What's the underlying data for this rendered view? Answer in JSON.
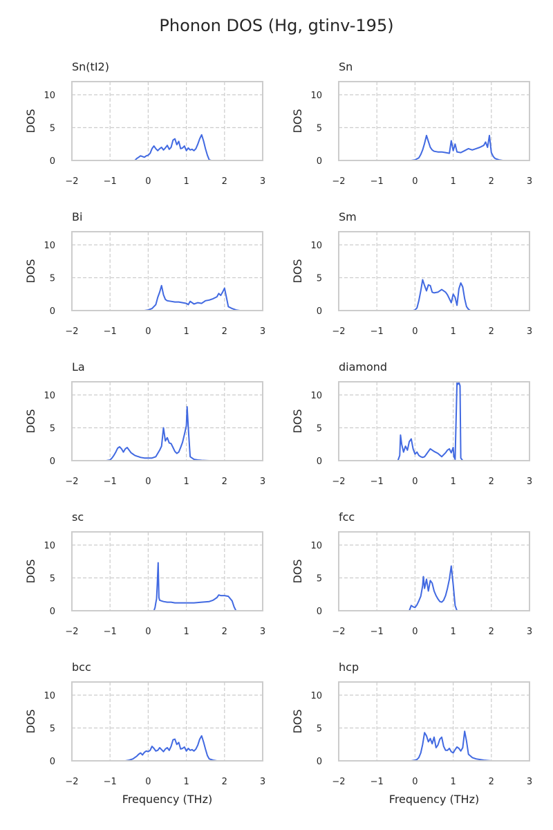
{
  "figure": {
    "title": "Phonon DOS (Hg, gtinv-195)",
    "line_color": "#4169e1",
    "grid_color": "#cccccc",
    "frame_color": "#cccccc"
  },
  "chart_data": [
    {
      "type": "line",
      "title": "Sn(tI2)",
      "xlabel": "",
      "ylabel": "DOS",
      "xlim": [
        -2,
        3
      ],
      "ylim": [
        0,
        12
      ],
      "xticks": [
        -2,
        -1,
        0,
        1,
        2,
        3
      ],
      "yticks": [
        0,
        5,
        10
      ],
      "grid": true,
      "series": [
        {
          "x": [
            -0.35,
            -0.3,
            -0.25,
            -0.2,
            -0.15,
            -0.1,
            -0.05,
            0,
            0.05,
            0.1,
            0.15,
            0.2,
            0.25,
            0.3,
            0.35,
            0.4,
            0.45,
            0.5,
            0.55,
            0.6,
            0.65,
            0.7,
            0.75,
            0.8,
            0.85,
            0.9,
            0.95,
            1.0,
            1.05,
            1.1,
            1.15,
            1.2,
            1.25,
            1.3,
            1.35,
            1.4,
            1.45,
            1.5,
            1.55,
            1.6,
            1.65
          ],
          "y": [
            0,
            0.3,
            0.5,
            0.7,
            0.6,
            0.5,
            0.7,
            0.8,
            1.1,
            1.8,
            2.2,
            1.8,
            1.5,
            1.8,
            2.0,
            1.6,
            1.9,
            2.3,
            1.7,
            2.0,
            3.1,
            3.3,
            2.4,
            2.9,
            1.8,
            1.9,
            2.2,
            1.5,
            1.9,
            1.6,
            1.7,
            1.5,
            1.8,
            2.5,
            3.3,
            3.9,
            3.0,
            1.8,
            0.8,
            0.1,
            0
          ]
        }
      ]
    },
    {
      "type": "line",
      "title": "Sn",
      "xlabel": "",
      "ylabel": "DOS",
      "xlim": [
        -2,
        3
      ],
      "ylim": [
        0,
        12
      ],
      "xticks": [
        -2,
        -1,
        0,
        1,
        2,
        3
      ],
      "yticks": [
        0,
        5,
        10
      ],
      "grid": true,
      "series": [
        {
          "x": [
            -0.1,
            0,
            0.1,
            0.15,
            0.2,
            0.25,
            0.3,
            0.35,
            0.4,
            0.45,
            0.5,
            0.6,
            0.7,
            0.8,
            0.9,
            0.95,
            1.0,
            1.05,
            1.1,
            1.2,
            1.3,
            1.4,
            1.5,
            1.6,
            1.7,
            1.8,
            1.85,
            1.9,
            1.95,
            2.0,
            2.05,
            2.1,
            2.2,
            2.3
          ],
          "y": [
            0,
            0.1,
            0.4,
            0.9,
            1.6,
            2.6,
            3.8,
            2.9,
            2.0,
            1.6,
            1.4,
            1.3,
            1.3,
            1.2,
            1.1,
            3.0,
            1.5,
            2.5,
            1.3,
            1.2,
            1.5,
            1.8,
            1.6,
            1.8,
            2.0,
            2.3,
            2.8,
            2.0,
            3.8,
            1.2,
            0.6,
            0.3,
            0.1,
            0
          ]
        }
      ]
    },
    {
      "type": "line",
      "title": "Bi",
      "xlabel": "",
      "ylabel": "DOS",
      "xlim": [
        -2,
        3
      ],
      "ylim": [
        0,
        12
      ],
      "xticks": [
        -2,
        -1,
        0,
        1,
        2,
        3
      ],
      "yticks": [
        0,
        5,
        10
      ],
      "grid": true,
      "series": [
        {
          "x": [
            -0.1,
            0,
            0.1,
            0.2,
            0.25,
            0.3,
            0.35,
            0.4,
            0.45,
            0.5,
            0.6,
            0.7,
            0.8,
            0.9,
            1.0,
            1.05,
            1.1,
            1.2,
            1.3,
            1.4,
            1.5,
            1.6,
            1.7,
            1.8,
            1.85,
            1.9,
            1.95,
            2.0,
            2.05,
            2.1,
            2.2,
            2.3,
            2.4
          ],
          "y": [
            0,
            0.1,
            0.3,
            0.9,
            2.0,
            2.8,
            3.8,
            2.4,
            1.7,
            1.5,
            1.4,
            1.3,
            1.3,
            1.2,
            1.1,
            0.9,
            1.4,
            1.0,
            1.2,
            1.1,
            1.5,
            1.6,
            1.8,
            2.1,
            2.6,
            2.3,
            2.8,
            3.4,
            2.0,
            0.6,
            0.3,
            0.1,
            0
          ]
        }
      ]
    },
    {
      "type": "line",
      "title": "Sm",
      "xlabel": "",
      "ylabel": "DOS",
      "xlim": [
        -2,
        3
      ],
      "ylim": [
        0,
        12
      ],
      "xticks": [
        -2,
        -1,
        0,
        1,
        2,
        3
      ],
      "yticks": [
        0,
        5,
        10
      ],
      "grid": true,
      "series": [
        {
          "x": [
            -0.05,
            0,
            0.05,
            0.1,
            0.15,
            0.2,
            0.25,
            0.3,
            0.35,
            0.4,
            0.45,
            0.5,
            0.6,
            0.7,
            0.8,
            0.85,
            0.9,
            0.95,
            1.0,
            1.05,
            1.1,
            1.15,
            1.2,
            1.25,
            1.3,
            1.35,
            1.4,
            1.45
          ],
          "y": [
            0,
            0.1,
            0.4,
            1.5,
            3.0,
            4.7,
            3.8,
            3.0,
            3.9,
            3.8,
            2.8,
            2.7,
            2.8,
            3.2,
            2.8,
            2.4,
            1.8,
            1.2,
            2.5,
            2.0,
            0.8,
            3.3,
            4.2,
            3.6,
            1.8,
            0.6,
            0.2,
            0
          ]
        }
      ]
    },
    {
      "type": "line",
      "title": "La",
      "xlabel": "",
      "ylabel": "DOS",
      "xlim": [
        -2,
        3
      ],
      "ylim": [
        0,
        12
      ],
      "xticks": [
        -2,
        -1,
        0,
        1,
        2,
        3
      ],
      "yticks": [
        0,
        5,
        10
      ],
      "grid": true,
      "series": [
        {
          "x": [
            -1.1,
            -1.0,
            -0.95,
            -0.9,
            -0.85,
            -0.8,
            -0.75,
            -0.7,
            -0.65,
            -0.6,
            -0.55,
            -0.5,
            -0.45,
            -0.4,
            -0.35,
            -0.3,
            -0.25,
            -0.2,
            -0.1,
            0,
            0.1,
            0.2,
            0.25,
            0.3,
            0.35,
            0.4,
            0.45,
            0.5,
            0.55,
            0.6,
            0.65,
            0.7,
            0.75,
            0.8,
            0.85,
            0.9,
            0.95,
            1.0,
            1.02,
            1.05,
            1.1,
            1.2,
            1.3,
            1.4,
            1.6
          ],
          "y": [
            0,
            0.1,
            0.4,
            0.8,
            1.3,
            1.9,
            2.1,
            1.8,
            1.3,
            1.8,
            2.0,
            1.6,
            1.2,
            1.0,
            0.8,
            0.7,
            0.6,
            0.5,
            0.4,
            0.4,
            0.4,
            0.6,
            1.1,
            1.6,
            2.2,
            5.0,
            3.0,
            3.5,
            2.7,
            2.6,
            2.0,
            1.4,
            1.1,
            1.3,
            2.0,
            2.8,
            4.0,
            5.3,
            8.2,
            5.0,
            0.6,
            0.2,
            0.1,
            0.05,
            0
          ]
        }
      ]
    },
    {
      "type": "line",
      "title": "diamond",
      "xlabel": "",
      "ylabel": "DOS",
      "xlim": [
        -2,
        3
      ],
      "ylim": [
        0,
        12
      ],
      "xticks": [
        -2,
        -1,
        0,
        1,
        2,
        3
      ],
      "yticks": [
        0,
        5,
        10
      ],
      "grid": true,
      "series": [
        {
          "x": [
            -0.45,
            -0.4,
            -0.38,
            -0.35,
            -0.3,
            -0.25,
            -0.2,
            -0.15,
            -0.1,
            -0.05,
            0,
            0.05,
            0.1,
            0.15,
            0.2,
            0.25,
            0.3,
            0.35,
            0.4,
            0.5,
            0.6,
            0.7,
            0.8,
            0.85,
            0.9,
            0.95,
            1.0,
            1.02,
            1.05,
            1.1,
            1.12,
            1.15,
            1.18,
            1.2,
            1.25
          ],
          "y": [
            0,
            0.8,
            3.9,
            2.5,
            1.3,
            2.2,
            1.6,
            2.9,
            3.3,
            1.8,
            1.0,
            1.3,
            0.8,
            0.6,
            0.5,
            0.6,
            1.0,
            1.4,
            1.8,
            1.4,
            1.1,
            0.6,
            1.2,
            1.6,
            1.8,
            1.2,
            2.0,
            0.6,
            0.2,
            11.8,
            11.6,
            11.9,
            11.4,
            0.4,
            0
          ]
        }
      ]
    },
    {
      "type": "line",
      "title": "sc",
      "xlabel": "",
      "ylabel": "DOS",
      "xlim": [
        -2,
        3
      ],
      "ylim": [
        0,
        12
      ],
      "xticks": [
        -2,
        -1,
        0,
        1,
        2,
        3
      ],
      "yticks": [
        0,
        5,
        10
      ],
      "grid": true,
      "series": [
        {
          "x": [
            0.15,
            0.18,
            0.2,
            0.22,
            0.24,
            0.26,
            0.28,
            0.3,
            0.35,
            0.4,
            0.5,
            0.6,
            0.7,
            0.8,
            1.0,
            1.2,
            1.4,
            1.6,
            1.7,
            1.8,
            1.85,
            1.9,
            2.0,
            2.1,
            2.2,
            2.25,
            2.3
          ],
          "y": [
            0,
            0.5,
            1.2,
            1.8,
            4.2,
            7.3,
            2.0,
            1.6,
            1.5,
            1.4,
            1.3,
            1.3,
            1.2,
            1.2,
            1.2,
            1.2,
            1.3,
            1.4,
            1.6,
            2.0,
            2.4,
            2.3,
            2.3,
            2.2,
            1.5,
            0.6,
            0
          ]
        }
      ]
    },
    {
      "type": "line",
      "title": "fcc",
      "xlabel": "",
      "ylabel": "DOS",
      "xlim": [
        -2,
        3
      ],
      "ylim": [
        0,
        12
      ],
      "xticks": [
        -2,
        -1,
        0,
        1,
        2,
        3
      ],
      "yticks": [
        0,
        5,
        10
      ],
      "grid": true,
      "series": [
        {
          "x": [
            -0.15,
            -0.1,
            -0.05,
            0,
            0.05,
            0.1,
            0.15,
            0.2,
            0.22,
            0.25,
            0.3,
            0.35,
            0.4,
            0.45,
            0.5,
            0.55,
            0.6,
            0.65,
            0.7,
            0.75,
            0.8,
            0.85,
            0.9,
            0.95,
            1.0,
            1.05,
            1.1
          ],
          "y": [
            0,
            0.8,
            0.6,
            0.5,
            0.9,
            1.5,
            2.2,
            3.8,
            5.2,
            3.4,
            4.8,
            3.0,
            4.6,
            4.2,
            3.0,
            2.3,
            1.8,
            1.4,
            1.3,
            1.6,
            2.3,
            3.4,
            4.8,
            6.8,
            4.0,
            0.8,
            0
          ]
        }
      ]
    },
    {
      "type": "line",
      "title": "bcc",
      "xlabel": "Frequency (THz)",
      "ylabel": "DOS",
      "xlim": [
        -2,
        3
      ],
      "ylim": [
        0,
        12
      ],
      "xticks": [
        -2,
        -1,
        0,
        1,
        2,
        3
      ],
      "yticks": [
        0,
        5,
        10
      ],
      "grid": true,
      "series": [
        {
          "x": [
            -0.6,
            -0.5,
            -0.4,
            -0.3,
            -0.25,
            -0.2,
            -0.15,
            -0.1,
            -0.05,
            0,
            0.05,
            0.1,
            0.15,
            0.2,
            0.25,
            0.3,
            0.35,
            0.4,
            0.45,
            0.5,
            0.55,
            0.6,
            0.65,
            0.7,
            0.75,
            0.8,
            0.85,
            0.9,
            0.95,
            1.0,
            1.05,
            1.1,
            1.15,
            1.2,
            1.25,
            1.3,
            1.35,
            1.4,
            1.45,
            1.5,
            1.55,
            1.6,
            1.7,
            1.8
          ],
          "y": [
            0,
            0.1,
            0.3,
            0.7,
            1.0,
            1.2,
            0.9,
            1.3,
            1.5,
            1.4,
            1.6,
            2.2,
            1.9,
            1.5,
            1.6,
            2.0,
            1.7,
            1.4,
            1.8,
            2.0,
            1.6,
            2.2,
            3.2,
            3.3,
            2.5,
            2.8,
            1.8,
            1.9,
            2.1,
            1.5,
            1.9,
            1.6,
            1.7,
            1.5,
            1.8,
            2.4,
            3.3,
            3.8,
            2.9,
            1.8,
            0.8,
            0.3,
            0.1,
            0
          ]
        }
      ]
    },
    {
      "type": "line",
      "title": "hcp",
      "xlabel": "Frequency (THz)",
      "ylabel": "DOS",
      "xlim": [
        -2,
        3
      ],
      "ylim": [
        0,
        12
      ],
      "xticks": [
        -2,
        -1,
        0,
        1,
        2,
        3
      ],
      "yticks": [
        0,
        5,
        10
      ],
      "grid": true,
      "series": [
        {
          "x": [
            -0.1,
            0,
            0.05,
            0.1,
            0.15,
            0.2,
            0.25,
            0.3,
            0.35,
            0.4,
            0.45,
            0.5,
            0.55,
            0.6,
            0.65,
            0.7,
            0.75,
            0.8,
            0.85,
            0.9,
            0.95,
            1.0,
            1.05,
            1.1,
            1.15,
            1.2,
            1.25,
            1.3,
            1.35,
            1.4,
            1.5,
            1.6,
            1.8,
            2.0
          ],
          "y": [
            0,
            0.1,
            0.2,
            0.5,
            1.2,
            2.5,
            4.3,
            3.8,
            2.9,
            3.4,
            2.6,
            3.6,
            2.0,
            2.4,
            3.3,
            3.6,
            2.2,
            1.6,
            1.6,
            1.9,
            1.4,
            1.2,
            1.7,
            2.1,
            1.9,
            1.5,
            2.0,
            4.5,
            3.0,
            1.0,
            0.5,
            0.3,
            0.1,
            0
          ]
        }
      ]
    }
  ]
}
